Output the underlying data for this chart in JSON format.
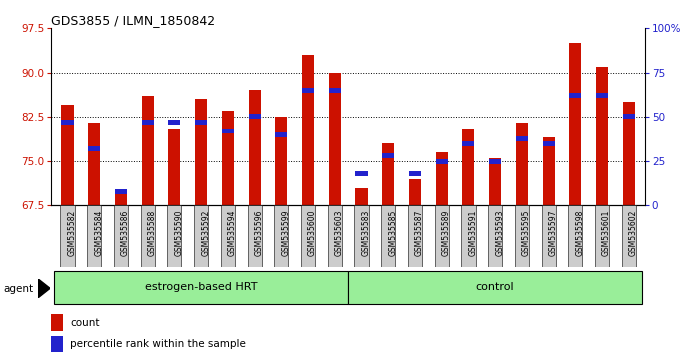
{
  "title": "GDS3855 / ILMN_1850842",
  "samples": [
    "GSM535582",
    "GSM535584",
    "GSM535586",
    "GSM535588",
    "GSM535590",
    "GSM535592",
    "GSM535594",
    "GSM535596",
    "GSM535599",
    "GSM535600",
    "GSM535603",
    "GSM535583",
    "GSM535585",
    "GSM535587",
    "GSM535589",
    "GSM535591",
    "GSM535593",
    "GSM535595",
    "GSM535597",
    "GSM535598",
    "GSM535601",
    "GSM535602"
  ],
  "red_values": [
    84.5,
    81.5,
    69.5,
    86.0,
    80.5,
    85.5,
    83.5,
    87.0,
    82.5,
    93.0,
    90.0,
    70.5,
    78.0,
    72.0,
    76.5,
    80.5,
    75.5,
    81.5,
    79.0,
    95.0,
    91.0,
    85.0
  ],
  "blue_values_pct": [
    47,
    32,
    8,
    47,
    47,
    47,
    42,
    50,
    40,
    65,
    65,
    18,
    28,
    18,
    25,
    35,
    25,
    38,
    35,
    62,
    62,
    50
  ],
  "group1_label": "estrogen-based HRT",
  "group1_count": 11,
  "group2_label": "control",
  "group2_count": 11,
  "agent_label": "agent",
  "legend_count": "count",
  "legend_pct": "percentile rank within the sample",
  "ylim_left": [
    67.5,
    97.5
  ],
  "yticks_left": [
    67.5,
    75.0,
    82.5,
    90.0,
    97.5
  ],
  "yticks_right": [
    0,
    25,
    50,
    75,
    100
  ],
  "bar_color": "#cc1100",
  "blue_color": "#2222cc",
  "group_color": "#99ee99",
  "tick_label_bg": "#cccccc",
  "bar_width": 0.45
}
